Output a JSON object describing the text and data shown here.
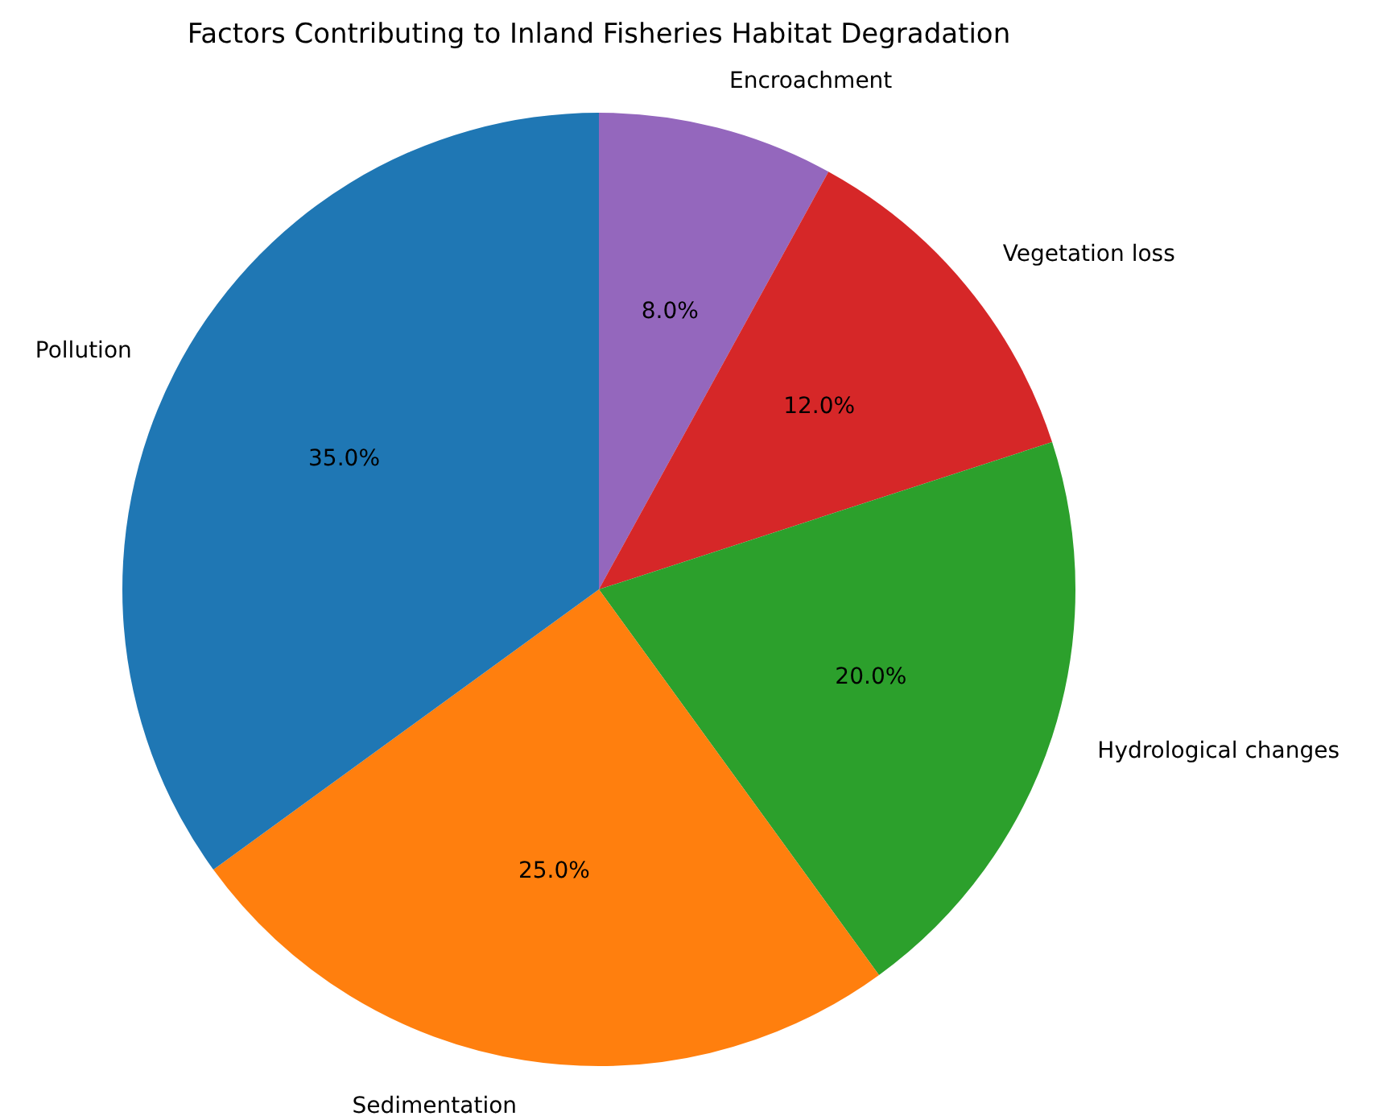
{
  "chart_data": {
    "type": "pie",
    "title": "Factors Contributing to Inland Fisheries Habitat Degradation",
    "categories": [
      "Encroachment",
      "Vegetation loss",
      "Hydrological changes",
      "Sedimentation",
      "Pollution"
    ],
    "values": [
      8,
      12,
      20,
      25,
      35
    ],
    "colors": [
      "#9467bd",
      "#d62728",
      "#2ca02c",
      "#ff7f0e",
      "#1f77b4"
    ],
    "value_labels": [
      "8.0%",
      "12.0%",
      "20.0%",
      "25.0%",
      "35.0%"
    ],
    "legend": false
  }
}
